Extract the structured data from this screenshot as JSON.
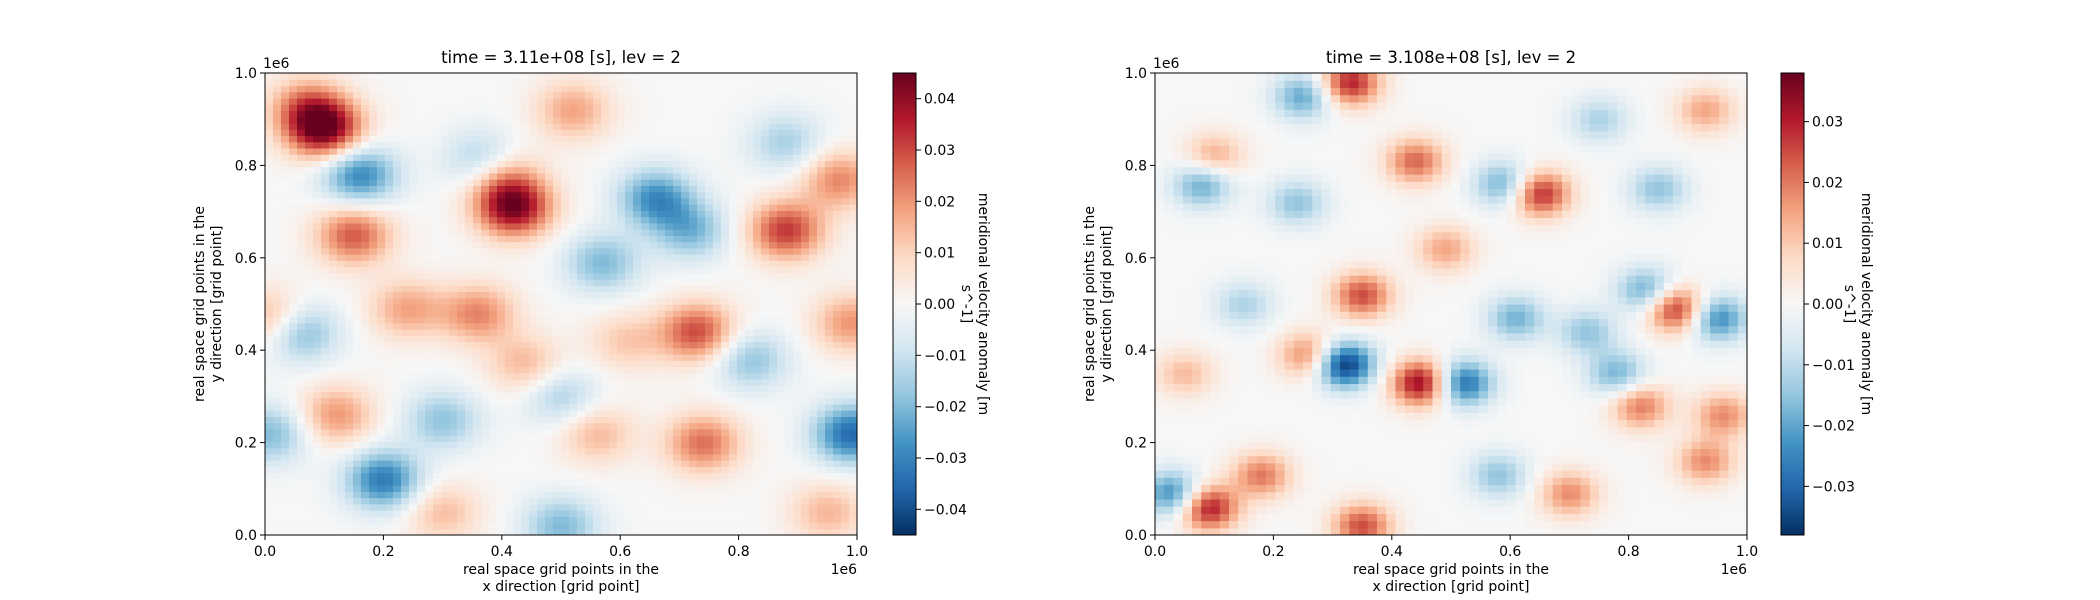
{
  "chart_data": [
    {
      "type": "heatmap",
      "title": "time = 3.11e+08 [s], lev = 2",
      "xlabel": [
        "real space grid points in the",
        "x direction [grid point]"
      ],
      "ylabel": [
        "real space grid points in the",
        "y direction [grid point]"
      ],
      "x_offset_label": "1e6",
      "y_offset_label": "1e6",
      "xlim": [
        0.0,
        1.0
      ],
      "ylim": [
        0.0,
        1.0
      ],
      "xticks": [
        "0.0",
        "0.2",
        "0.4",
        "0.6",
        "0.8",
        "1.0"
      ],
      "yticks": [
        "0.0",
        "0.2",
        "0.4",
        "0.6",
        "0.8",
        "1.0"
      ],
      "colorbar": {
        "label": [
          "meridional velocity anomaly [m",
          "s^-1]"
        ],
        "colormap": "RdBu_r",
        "range": [
          -0.045,
          0.045
        ],
        "ticks": [
          "-0.04",
          "-0.03",
          "-0.02",
          "-0.01",
          "0.00",
          "0.01",
          "0.02",
          "0.03",
          "0.04"
        ],
        "tick_values": [
          -0.04,
          -0.03,
          -0.02,
          -0.01,
          0.0,
          0.01,
          0.02,
          0.03,
          0.04
        ]
      },
      "features": [
        {
          "x": 0.1,
          "y": 0.88,
          "value": 0.044
        },
        {
          "x": 0.07,
          "y": 0.93,
          "value": 0.02
        },
        {
          "x": 0.16,
          "y": 0.78,
          "value": -0.03
        },
        {
          "x": 0.15,
          "y": 0.65,
          "value": 0.028
        },
        {
          "x": 0.42,
          "y": 0.71,
          "value": 0.042
        },
        {
          "x": 0.4,
          "y": 0.78,
          "value": 0.02
        },
        {
          "x": 0.37,
          "y": 0.81,
          "value": -0.02
        },
        {
          "x": 0.52,
          "y": 0.92,
          "value": 0.018
        },
        {
          "x": 0.66,
          "y": 0.73,
          "value": -0.028
        },
        {
          "x": 0.72,
          "y": 0.66,
          "value": -0.02
        },
        {
          "x": 0.88,
          "y": 0.66,
          "value": 0.032
        },
        {
          "x": 0.88,
          "y": 0.85,
          "value": -0.015
        },
        {
          "x": 0.97,
          "y": 0.77,
          "value": 0.022
        },
        {
          "x": 0.06,
          "y": 0.44,
          "value": -0.022
        },
        {
          "x": 0.01,
          "y": 0.47,
          "value": 0.018
        },
        {
          "x": 0.24,
          "y": 0.49,
          "value": 0.018
        },
        {
          "x": 0.36,
          "y": 0.48,
          "value": 0.022
        },
        {
          "x": 0.57,
          "y": 0.59,
          "value": -0.02
        },
        {
          "x": 0.73,
          "y": 0.44,
          "value": 0.03
        },
        {
          "x": 0.82,
          "y": 0.38,
          "value": -0.018
        },
        {
          "x": 0.99,
          "y": 0.46,
          "value": 0.02
        },
        {
          "x": 0.2,
          "y": 0.12,
          "value": -0.032
        },
        {
          "x": 0.12,
          "y": 0.26,
          "value": 0.02
        },
        {
          "x": 0.3,
          "y": 0.25,
          "value": -0.018
        },
        {
          "x": 0.5,
          "y": 0.3,
          "value": -0.015
        },
        {
          "x": 0.44,
          "y": 0.37,
          "value": 0.015
        },
        {
          "x": 0.56,
          "y": 0.22,
          "value": 0.015
        },
        {
          "x": 0.74,
          "y": 0.2,
          "value": 0.025
        },
        {
          "x": 0.99,
          "y": 0.22,
          "value": -0.035
        },
        {
          "x": 0.95,
          "y": 0.05,
          "value": 0.015
        },
        {
          "x": 0.5,
          "y": 0.02,
          "value": -0.02
        },
        {
          "x": 0.01,
          "y": 0.22,
          "value": -0.02
        },
        {
          "x": 0.61,
          "y": 0.42,
          "value": 0.012
        },
        {
          "x": 0.3,
          "y": 0.05,
          "value": 0.014
        }
      ]
    },
    {
      "type": "heatmap",
      "title": "time = 3.108e+08 [s], lev = 2",
      "xlabel": [
        "real space grid points in the",
        "x direction [grid point]"
      ],
      "ylabel": [
        "real space grid points in the",
        "y direction [grid point]"
      ],
      "x_offset_label": "1e6",
      "y_offset_label": "1e6",
      "xlim": [
        0.0,
        1.0
      ],
      "ylim": [
        0.0,
        1.0
      ],
      "xticks": [
        "0.0",
        "0.2",
        "0.4",
        "0.6",
        "0.8",
        "1.0"
      ],
      "yticks": [
        "0.0",
        "0.2",
        "0.4",
        "0.6",
        "0.8",
        "1.0"
      ],
      "grid_cells": 64,
      "colorbar": {
        "label": [
          "meridional velocity anomaly [m",
          "s^-1]"
        ],
        "colormap": "RdBu_r",
        "range": [
          -0.038,
          0.038
        ],
        "ticks": [
          "-0.03",
          "-0.02",
          "-0.01",
          "0.00",
          "0.01",
          "0.02",
          "0.03"
        ],
        "tick_values": [
          -0.03,
          -0.02,
          -0.01,
          0.0,
          0.01,
          0.02,
          0.03
        ]
      },
      "features": [
        {
          "x": 0.32,
          "y": 0.37,
          "value": -0.038
        },
        {
          "x": 0.45,
          "y": 0.33,
          "value": 0.035
        },
        {
          "x": 0.52,
          "y": 0.33,
          "value": -0.03
        },
        {
          "x": 0.33,
          "y": 0.98,
          "value": 0.03
        },
        {
          "x": 0.25,
          "y": 0.95,
          "value": -0.02
        },
        {
          "x": 0.65,
          "y": 0.74,
          "value": 0.03
        },
        {
          "x": 0.59,
          "y": 0.76,
          "value": -0.02
        },
        {
          "x": 0.88,
          "y": 0.49,
          "value": 0.03
        },
        {
          "x": 0.95,
          "y": 0.47,
          "value": -0.025
        },
        {
          "x": 0.83,
          "y": 0.53,
          "value": -0.02
        },
        {
          "x": 0.09,
          "y": 0.06,
          "value": 0.032
        },
        {
          "x": 0.03,
          "y": 0.09,
          "value": -0.025
        },
        {
          "x": 0.35,
          "y": 0.02,
          "value": 0.025
        },
        {
          "x": 0.35,
          "y": 0.52,
          "value": 0.025
        },
        {
          "x": 0.44,
          "y": 0.81,
          "value": 0.022
        },
        {
          "x": 0.08,
          "y": 0.76,
          "value": -0.02
        },
        {
          "x": 0.26,
          "y": 0.39,
          "value": 0.02
        },
        {
          "x": 0.18,
          "y": 0.13,
          "value": 0.02
        },
        {
          "x": 0.1,
          "y": 0.82,
          "value": 0.015
        },
        {
          "x": 0.24,
          "y": 0.72,
          "value": -0.015
        },
        {
          "x": 0.61,
          "y": 0.47,
          "value": -0.018
        },
        {
          "x": 0.73,
          "y": 0.44,
          "value": -0.015
        },
        {
          "x": 0.78,
          "y": 0.35,
          "value": -0.018
        },
        {
          "x": 0.82,
          "y": 0.28,
          "value": 0.02
        },
        {
          "x": 0.58,
          "y": 0.13,
          "value": -0.015
        },
        {
          "x": 0.7,
          "y": 0.09,
          "value": 0.018
        },
        {
          "x": 0.93,
          "y": 0.16,
          "value": 0.018
        },
        {
          "x": 0.96,
          "y": 0.26,
          "value": 0.018
        },
        {
          "x": 0.85,
          "y": 0.75,
          "value": -0.015
        },
        {
          "x": 0.49,
          "y": 0.62,
          "value": 0.015
        },
        {
          "x": 0.15,
          "y": 0.5,
          "value": -0.012
        },
        {
          "x": 0.05,
          "y": 0.35,
          "value": 0.012
        },
        {
          "x": 0.75,
          "y": 0.9,
          "value": -0.012
        },
        {
          "x": 0.93,
          "y": 0.92,
          "value": 0.015
        }
      ]
    }
  ]
}
